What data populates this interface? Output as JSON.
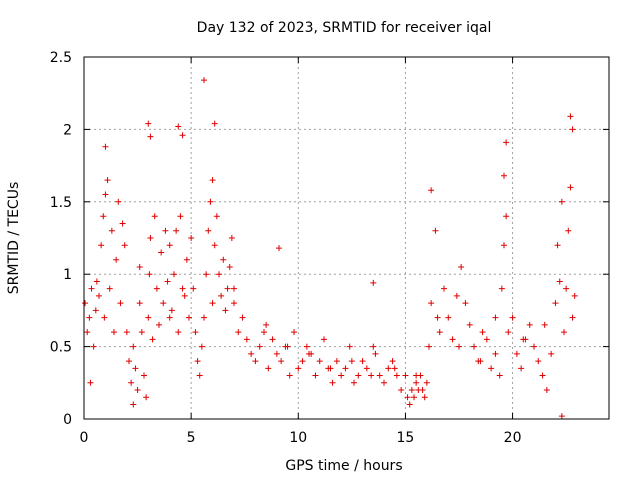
{
  "chart_data": {
    "type": "scatter",
    "title": "Day 132 of 2023, SRMTID for receiver iqal",
    "xlabel": "GPS time / hours",
    "ylabel": "SRMTID / TECUs",
    "xlim": [
      0,
      24.5
    ],
    "ylim": [
      0,
      2.5
    ],
    "x_ticks": [
      0,
      5,
      10,
      15,
      20
    ],
    "x_tick_labels": [
      "0",
      "5",
      "10",
      "15",
      "20"
    ],
    "y_ticks": [
      0,
      0.5,
      1,
      1.5,
      2,
      2.5
    ],
    "y_tick_labels": [
      "0",
      "0.5",
      "1",
      "1.5",
      "2",
      "2.5"
    ],
    "grid": true,
    "marker": "+",
    "color": "#e00000",
    "series": [
      {
        "name": "SRMTID",
        "x": [
          0.05,
          0.15,
          0.25,
          0.35,
          0.45,
          0.55,
          0.6,
          0.7,
          0.8,
          0.9,
          0.95,
          1.0,
          1.1,
          1.2,
          1.3,
          1.4,
          1.5,
          1.6,
          1.7,
          1.8,
          1.9,
          2.0,
          2.1,
          2.2,
          2.3,
          2.4,
          2.5,
          2.6,
          2.7,
          2.8,
          2.9,
          3.0,
          3.05,
          3.1,
          3.2,
          3.3,
          3.4,
          3.5,
          3.6,
          3.7,
          3.8,
          3.9,
          4.0,
          4.1,
          4.2,
          4.3,
          4.4,
          4.5,
          4.6,
          4.7,
          4.8,
          4.9,
          5.0,
          5.1,
          5.2,
          5.3,
          5.4,
          5.5,
          5.6,
          5.7,
          5.8,
          5.9,
          6.0,
          6.1,
          6.2,
          6.3,
          6.4,
          6.5,
          6.6,
          6.7,
          6.8,
          6.9,
          7.0,
          7.2,
          7.4,
          7.6,
          7.8,
          8.0,
          8.2,
          8.4,
          8.6,
          8.8,
          9.0,
          9.2,
          9.4,
          9.6,
          9.8,
          10.0,
          10.2,
          10.4,
          10.6,
          10.8,
          11.0,
          11.2,
          11.4,
          11.6,
          11.8,
          12.0,
          12.2,
          12.4,
          12.6,
          12.8,
          13.0,
          13.2,
          13.4,
          13.6,
          13.8,
          14.0,
          14.2,
          14.4,
          14.6,
          14.8,
          15.0,
          15.1,
          15.2,
          15.3,
          15.4,
          15.5,
          15.6,
          15.7,
          15.8,
          15.9,
          16.0,
          16.1,
          16.2,
          16.4,
          16.6,
          16.8,
          17.0,
          17.2,
          17.4,
          17.6,
          17.8,
          18.0,
          18.2,
          18.4,
          18.6,
          18.8,
          19.0,
          19.2,
          19.4,
          19.5,
          19.6,
          19.7,
          19.8,
          20.0,
          20.2,
          20.4,
          20.6,
          20.8,
          21.0,
          21.2,
          21.4,
          21.6,
          21.8,
          22.0,
          22.1,
          22.2,
          22.3,
          22.4,
          22.5,
          22.6,
          22.7,
          22.8,
          22.9,
          3.0,
          3.1,
          4.4,
          4.6,
          5.6,
          6.1,
          1.0,
          19.7,
          19.6,
          22.7,
          22.8,
          16.2,
          9.1,
          13.5,
          0.3,
          2.3,
          2.6,
          4.0,
          6.0,
          7.0,
          8.5,
          9.5,
          10.5,
          11.5,
          12.5,
          13.5,
          14.5,
          15.5,
          16.5,
          17.5,
          18.5,
          19.2,
          20.5,
          21.5,
          22.3
        ],
        "y": [
          0.8,
          0.6,
          0.7,
          0.9,
          0.5,
          0.75,
          0.95,
          0.85,
          1.2,
          1.4,
          0.7,
          1.55,
          1.65,
          0.9,
          1.3,
          0.6,
          1.1,
          1.5,
          0.8,
          1.35,
          1.2,
          0.6,
          0.4,
          0.25,
          0.5,
          0.35,
          0.2,
          0.8,
          0.6,
          0.3,
          0.15,
          0.7,
          1.0,
          1.25,
          0.55,
          1.4,
          0.9,
          0.65,
          1.15,
          0.8,
          1.3,
          0.95,
          1.2,
          0.75,
          1.0,
          1.3,
          0.6,
          1.4,
          0.9,
          0.85,
          1.1,
          0.7,
          1.25,
          0.9,
          0.6,
          0.4,
          0.3,
          0.5,
          0.7,
          1.0,
          1.3,
          1.5,
          1.65,
          1.2,
          1.4,
          1.0,
          0.85,
          1.1,
          0.75,
          0.9,
          1.05,
          1.25,
          0.8,
          0.6,
          0.7,
          0.55,
          0.45,
          0.4,
          0.5,
          0.6,
          0.35,
          0.55,
          0.45,
          0.4,
          0.5,
          0.3,
          0.6,
          0.35,
          0.4,
          0.5,
          0.45,
          0.3,
          0.4,
          0.55,
          0.35,
          0.25,
          0.4,
          0.3,
          0.35,
          0.5,
          0.25,
          0.3,
          0.4,
          0.35,
          0.3,
          0.45,
          0.3,
          0.25,
          0.35,
          0.4,
          0.3,
          0.2,
          0.3,
          0.15,
          0.1,
          0.2,
          0.15,
          0.25,
          0.2,
          0.3,
          0.2,
          0.15,
          0.25,
          0.5,
          0.8,
          1.3,
          0.6,
          0.9,
          0.7,
          0.55,
          0.85,
          1.05,
          0.8,
          0.65,
          0.5,
          0.4,
          0.6,
          0.55,
          0.35,
          0.45,
          0.3,
          0.9,
          1.2,
          1.4,
          0.6,
          0.7,
          0.45,
          0.35,
          0.55,
          0.65,
          0.5,
          0.4,
          0.3,
          0.2,
          0.45,
          0.8,
          1.2,
          0.95,
          1.5,
          0.6,
          0.9,
          1.3,
          1.6,
          0.7,
          0.85,
          2.04,
          1.95,
          2.02,
          1.96,
          2.34,
          2.04,
          1.88,
          1.91,
          1.68,
          2.09,
          2.0,
          1.58,
          1.18,
          0.94,
          0.25,
          0.1,
          1.05,
          0.7,
          0.8,
          0.9,
          0.65,
          0.5,
          0.45,
          0.35,
          0.4,
          0.5,
          0.35,
          0.3,
          0.7,
          0.5,
          0.4,
          0.7,
          0.55,
          0.65,
          0.02
        ]
      }
    ]
  }
}
